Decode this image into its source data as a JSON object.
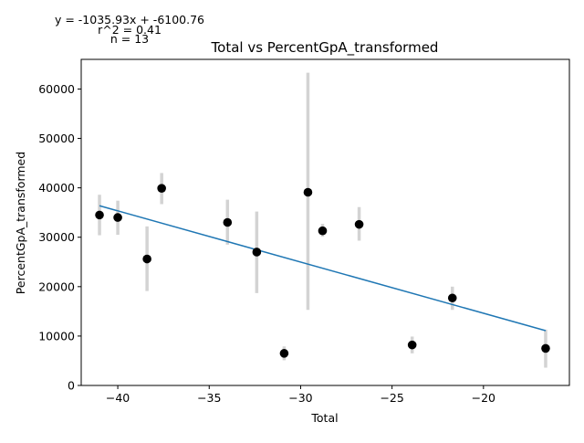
{
  "chart_data": {
    "type": "scatter",
    "title": "Total vs PercentGpA_transformed",
    "xlabel": "Total",
    "ylabel": "PercentGpA_transformed",
    "xlim": [
      -42.0,
      -15.3
    ],
    "ylim": [
      0,
      66000
    ],
    "x_ticks": [
      -40,
      -35,
      -30,
      -25,
      -20
    ],
    "x_tick_labels": [
      "−40",
      "−35",
      "−30",
      "−25",
      "−20"
    ],
    "y_ticks": [
      0,
      10000,
      20000,
      30000,
      40000,
      50000,
      60000
    ],
    "y_tick_labels": [
      "0",
      "10000",
      "20000",
      "30000",
      "40000",
      "50000",
      "60000"
    ],
    "grid": false,
    "annotations": {
      "equation": "y = -1035.93x + -6100.76",
      "r_squared": "r^2 = 0.41",
      "n": "n = 13"
    },
    "points": [
      {
        "x": -41.0,
        "y": 34500,
        "err_low": 30400,
        "err_high": 38600
      },
      {
        "x": -40.0,
        "y": 34000,
        "err_low": 30500,
        "err_high": 37400
      },
      {
        "x": -38.4,
        "y": 25600,
        "err_low": 19100,
        "err_high": 32200
      },
      {
        "x": -37.6,
        "y": 39900,
        "err_low": 36700,
        "err_high": 43000
      },
      {
        "x": -34.0,
        "y": 33000,
        "err_low": 28500,
        "err_high": 37600
      },
      {
        "x": -32.4,
        "y": 27000,
        "err_low": 18700,
        "err_high": 35200
      },
      {
        "x": -30.9,
        "y": 6500,
        "err_low": 5100,
        "err_high": 7900
      },
      {
        "x": -29.6,
        "y": 39100,
        "err_low": 15300,
        "err_high": 63300
      },
      {
        "x": -28.8,
        "y": 31300,
        "err_low": 30100,
        "err_high": 32700
      },
      {
        "x": -26.8,
        "y": 32600,
        "err_low": 29300,
        "err_high": 36100
      },
      {
        "x": -23.9,
        "y": 8200,
        "err_low": 6500,
        "err_high": 9900
      },
      {
        "x": -21.7,
        "y": 17700,
        "err_low": 15300,
        "err_high": 20000
      },
      {
        "x": -16.6,
        "y": 7500,
        "err_low": 3600,
        "err_high": 11300
      }
    ],
    "fit_line": {
      "x": [
        -41.0,
        -16.6
      ],
      "slope": -1035.93,
      "intercept": -6100.76
    },
    "colors": {
      "point": "#000000",
      "error_bar": "#d3d3d3",
      "fit_line": "#1f77b4",
      "axes": "#000000",
      "background": "#ffffff"
    }
  }
}
